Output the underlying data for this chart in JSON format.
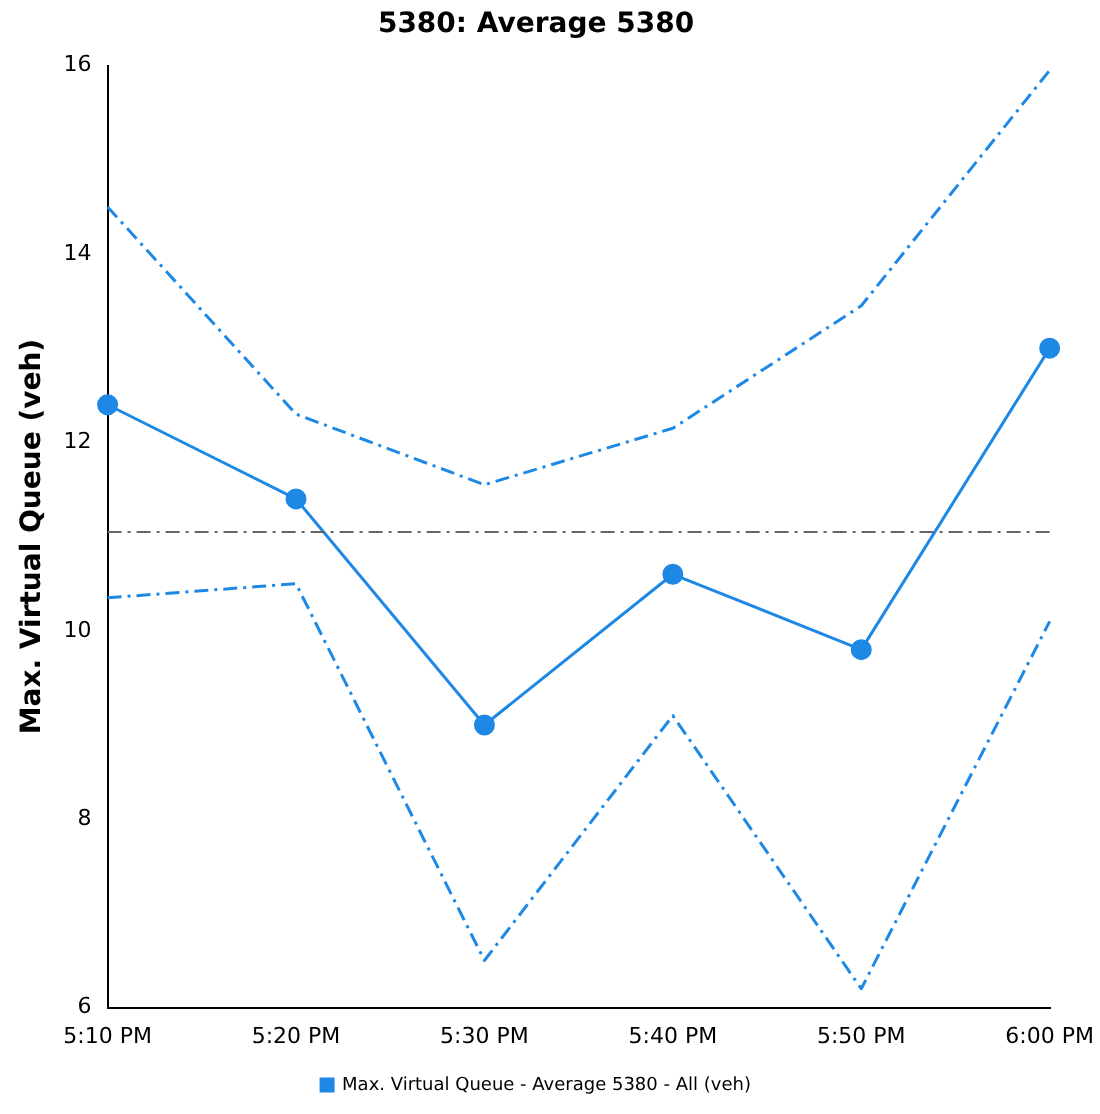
{
  "chart_data": {
    "type": "line",
    "title": "5380: Average 5380",
    "ylabel": "Max. Virtual Queue (veh)",
    "categories": [
      "5:10 PM",
      "5:20 PM",
      "5:30 PM",
      "5:40 PM",
      "5:50 PM",
      "6:00 PM"
    ],
    "series": [
      {
        "name": "Max. Virtual Queue - Average 5380 - All (veh)",
        "color": "#1e88e5",
        "values": [
          12.4,
          11.4,
          9.0,
          10.6,
          9.8,
          13.0
        ]
      },
      {
        "color": "#1e88e5",
        "values": [
          14.5,
          12.3,
          11.55,
          12.15,
          13.45,
          15.95
        ],
        "line_style": "dashed",
        "marker": "none"
      },
      {
        "color": "#1e88e5",
        "values": [
          10.35,
          10.5,
          6.5,
          9.1,
          6.2,
          10.1
        ],
        "line_style": "dashed",
        "marker": "none"
      }
    ],
    "ylim": [
      6,
      16
    ],
    "yticks": [
      6,
      8,
      10,
      12,
      14,
      16
    ],
    "ref_lines": [
      {
        "axis": "y",
        "value": 11.05,
        "color": "#666666",
        "line_style": "dashed"
      }
    ],
    "grid": false,
    "legend": "bottom",
    "marker": "circle",
    "line_style": "solid"
  }
}
